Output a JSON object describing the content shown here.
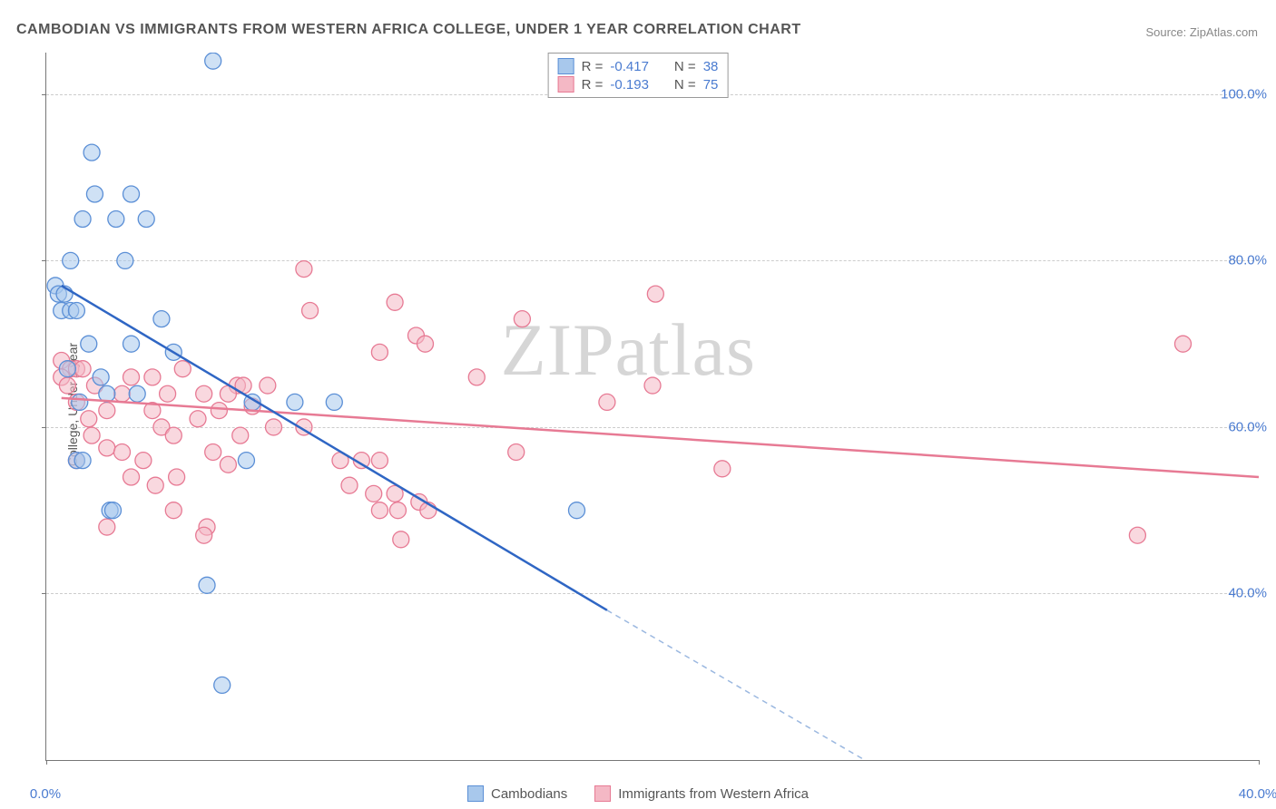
{
  "title": "CAMBODIAN VS IMMIGRANTS FROM WESTERN AFRICA COLLEGE, UNDER 1 YEAR CORRELATION CHART",
  "source": "Source: ZipAtlas.com",
  "watermark": "ZIPatlas",
  "y_axis_label": "College, Under 1 year",
  "chart": {
    "type": "scatter",
    "xlim": [
      0,
      40
    ],
    "ylim": [
      20,
      105
    ],
    "x_ticks": [
      0,
      40
    ],
    "x_tick_labels": [
      "0.0%",
      "40.0%"
    ],
    "y_ticks": [
      40,
      60,
      80,
      100
    ],
    "y_tick_labels": [
      "40.0%",
      "60.0%",
      "80.0%",
      "100.0%"
    ],
    "grid_color": "#cccccc",
    "background_color": "#ffffff",
    "series": [
      {
        "name": "Cambodians",
        "color_fill": "#a8c8ec",
        "color_stroke": "#5b8fd6",
        "fill_opacity": 0.55,
        "r_value": "-0.417",
        "n_value": "38",
        "trend": {
          "x1": 0.5,
          "y1": 77,
          "x2": 18.5,
          "y2": 38,
          "x2_dash": 27,
          "y2_dash": 20
        },
        "points": [
          [
            5.5,
            104
          ],
          [
            1.5,
            93
          ],
          [
            1.6,
            88
          ],
          [
            2.8,
            88
          ],
          [
            1.2,
            85
          ],
          [
            2.3,
            85
          ],
          [
            3.3,
            85
          ],
          [
            0.8,
            80
          ],
          [
            2.6,
            80
          ],
          [
            0.3,
            77
          ],
          [
            0.4,
            76
          ],
          [
            0.6,
            76
          ],
          [
            0.5,
            74
          ],
          [
            0.8,
            74
          ],
          [
            1,
            74
          ],
          [
            3.8,
            73
          ],
          [
            1.4,
            70
          ],
          [
            2.8,
            70
          ],
          [
            4.2,
            69
          ],
          [
            0.7,
            67
          ],
          [
            1.8,
            66
          ],
          [
            2.0,
            64
          ],
          [
            3.0,
            64
          ],
          [
            1.1,
            63
          ],
          [
            6.8,
            63
          ],
          [
            8.2,
            63
          ],
          [
            9.5,
            63
          ],
          [
            1.0,
            56
          ],
          [
            1.2,
            56
          ],
          [
            6.6,
            56
          ],
          [
            2.1,
            50
          ],
          [
            2.2,
            50
          ],
          [
            17.5,
            50
          ],
          [
            5.3,
            41
          ],
          [
            5.8,
            29
          ]
        ]
      },
      {
        "name": "Immigrants from Western Africa",
        "color_fill": "#f4b8c5",
        "color_stroke": "#e77a94",
        "fill_opacity": 0.55,
        "r_value": "-0.193",
        "n_value": "75",
        "trend": {
          "x1": 0.5,
          "y1": 63.5,
          "x2": 40,
          "y2": 54
        },
        "points": [
          [
            8.5,
            79
          ],
          [
            11.5,
            75
          ],
          [
            8.7,
            74
          ],
          [
            15.7,
            73
          ],
          [
            20.1,
            76
          ],
          [
            12.2,
            71
          ],
          [
            12.5,
            70
          ],
          [
            37.5,
            70
          ],
          [
            11,
            69
          ],
          [
            0.5,
            68
          ],
          [
            0.8,
            67
          ],
          [
            1,
            67
          ],
          [
            1.2,
            67
          ],
          [
            4.5,
            67
          ],
          [
            0.5,
            66
          ],
          [
            2.8,
            66
          ],
          [
            3.5,
            66
          ],
          [
            14.2,
            66
          ],
          [
            0.7,
            65
          ],
          [
            1.6,
            65
          ],
          [
            6.3,
            65
          ],
          [
            6.5,
            65
          ],
          [
            7.3,
            65
          ],
          [
            20,
            65
          ],
          [
            2.5,
            64
          ],
          [
            4,
            64
          ],
          [
            5.2,
            64
          ],
          [
            6,
            64
          ],
          [
            1,
            63
          ],
          [
            2,
            62
          ],
          [
            3.5,
            62
          ],
          [
            5.7,
            62
          ],
          [
            6.8,
            62.5
          ],
          [
            18.5,
            63
          ],
          [
            1.4,
            61
          ],
          [
            5,
            61
          ],
          [
            3.8,
            60
          ],
          [
            7.5,
            60
          ],
          [
            8.5,
            60
          ],
          [
            1.5,
            59
          ],
          [
            4.2,
            59
          ],
          [
            6.4,
            59
          ],
          [
            2.0,
            57.5
          ],
          [
            2.5,
            57
          ],
          [
            5.5,
            57
          ],
          [
            1.0,
            56
          ],
          [
            3.2,
            56
          ],
          [
            9.7,
            56
          ],
          [
            10.4,
            56
          ],
          [
            11,
            56
          ],
          [
            15.5,
            57
          ],
          [
            2.8,
            54
          ],
          [
            4.3,
            54
          ],
          [
            6,
            55.5
          ],
          [
            22.3,
            55
          ],
          [
            3.6,
            53
          ],
          [
            10,
            53
          ],
          [
            10.8,
            52
          ],
          [
            11.5,
            52
          ],
          [
            12.3,
            51
          ],
          [
            4.2,
            50
          ],
          [
            11,
            50
          ],
          [
            11.6,
            50
          ],
          [
            12.6,
            50
          ],
          [
            2.0,
            48
          ],
          [
            5.3,
            48
          ],
          [
            11.7,
            46.5
          ],
          [
            36.0,
            47
          ],
          [
            5.2,
            47
          ]
        ]
      }
    ]
  },
  "legend_top": {
    "rows": [
      {
        "swatch_fill": "#a8c8ec",
        "swatch_stroke": "#5b8fd6",
        "r_label": "R =",
        "r_val": "-0.417",
        "n_label": "N =",
        "n_val": "38"
      },
      {
        "swatch_fill": "#f4b8c5",
        "swatch_stroke": "#e77a94",
        "r_label": "R =",
        "r_val": "-0.193",
        "n_label": "N =",
        "n_val": "75"
      }
    ]
  },
  "legend_bottom": [
    {
      "swatch_fill": "#a8c8ec",
      "swatch_stroke": "#5b8fd6",
      "label": "Cambodians"
    },
    {
      "swatch_fill": "#f4b8c5",
      "swatch_stroke": "#e77a94",
      "label": "Immigrants from Western Africa"
    }
  ]
}
